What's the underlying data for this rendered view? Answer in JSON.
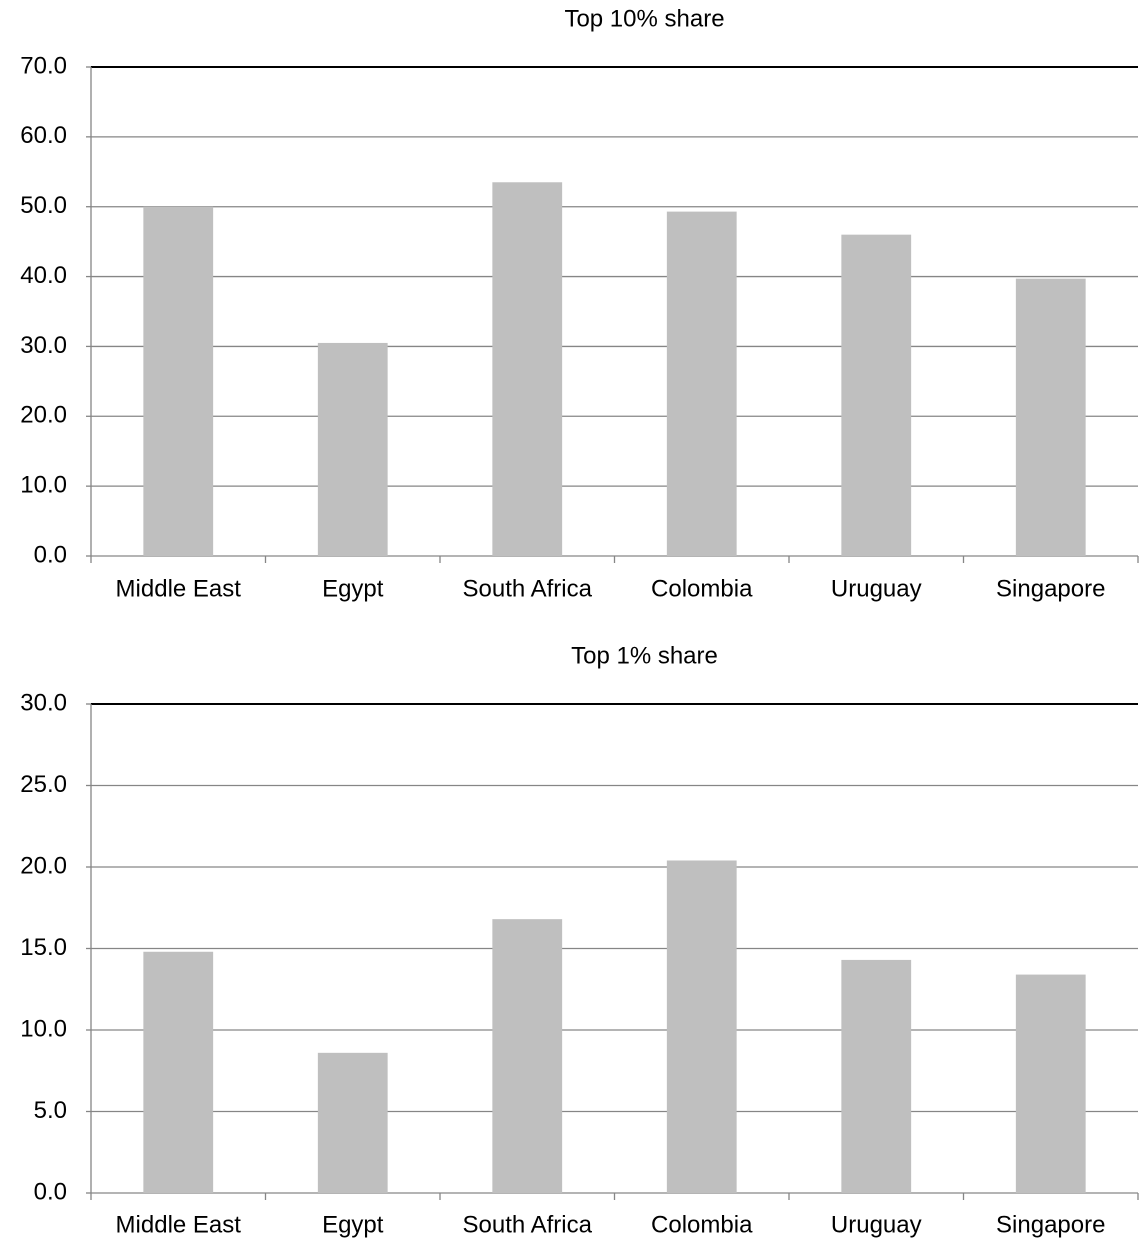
{
  "chart_data": [
    {
      "type": "bar",
      "title": "Top 10% share",
      "categories": [
        "Middle East",
        "Egypt",
        "South Africa",
        "Colombia",
        "Uruguay",
        "Singapore"
      ],
      "values": [
        50.0,
        30.5,
        53.5,
        49.3,
        46.0,
        39.7
      ],
      "color": "#bfbfbf",
      "ylim": [
        0,
        70
      ],
      "yticks": [
        {
          "value": 0,
          "label": "0.0"
        },
        {
          "value": 10,
          "label": "10.0"
        },
        {
          "value": 20,
          "label": "20.0"
        },
        {
          "value": 30,
          "label": "30.0"
        },
        {
          "value": 40,
          "label": "40.0"
        },
        {
          "value": 50,
          "label": "50.0"
        },
        {
          "value": 60,
          "label": "60.0"
        },
        {
          "value": 70,
          "label": "70.0"
        }
      ],
      "grid": true
    },
    {
      "type": "bar",
      "title": "Top 1% share",
      "categories": [
        "Middle East",
        "Egypt",
        "South Africa",
        "Colombia",
        "Uruguay",
        "Singapore"
      ],
      "values": [
        14.8,
        8.6,
        16.8,
        20.4,
        14.3,
        13.4
      ],
      "color": "#bfbfbf",
      "ylim": [
        0,
        30
      ],
      "yticks": [
        {
          "value": 0,
          "label": "0.0"
        },
        {
          "value": 5,
          "label": "5.0"
        },
        {
          "value": 10,
          "label": "10.0"
        },
        {
          "value": 15,
          "label": "15.0"
        },
        {
          "value": 20,
          "label": "20.0"
        },
        {
          "value": 25,
          "label": "25.0"
        },
        {
          "value": 30,
          "label": "30.0"
        }
      ],
      "grid": true
    }
  ]
}
